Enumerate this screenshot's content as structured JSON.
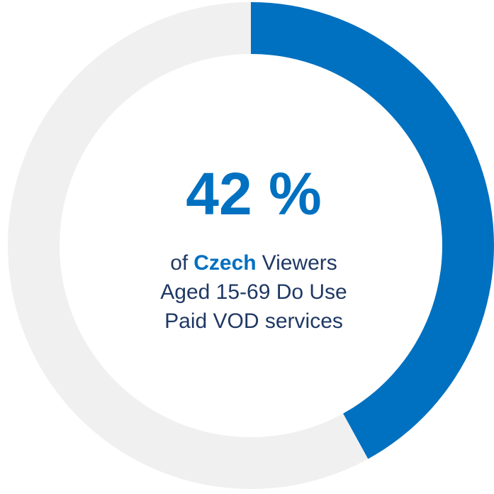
{
  "chart_data": {
    "type": "donut",
    "values": [
      42,
      58
    ],
    "value_labels": [
      "42 %",
      null
    ],
    "colors": [
      "#0070c0",
      "#f0f0f0"
    ],
    "caption": [
      [
        "of",
        "Czech",
        "Viewers"
      ],
      [
        "Aged 15-69 Do Use"
      ],
      [
        "Paid VOD services"
      ]
    ],
    "caption_highlight": "Czech"
  }
}
